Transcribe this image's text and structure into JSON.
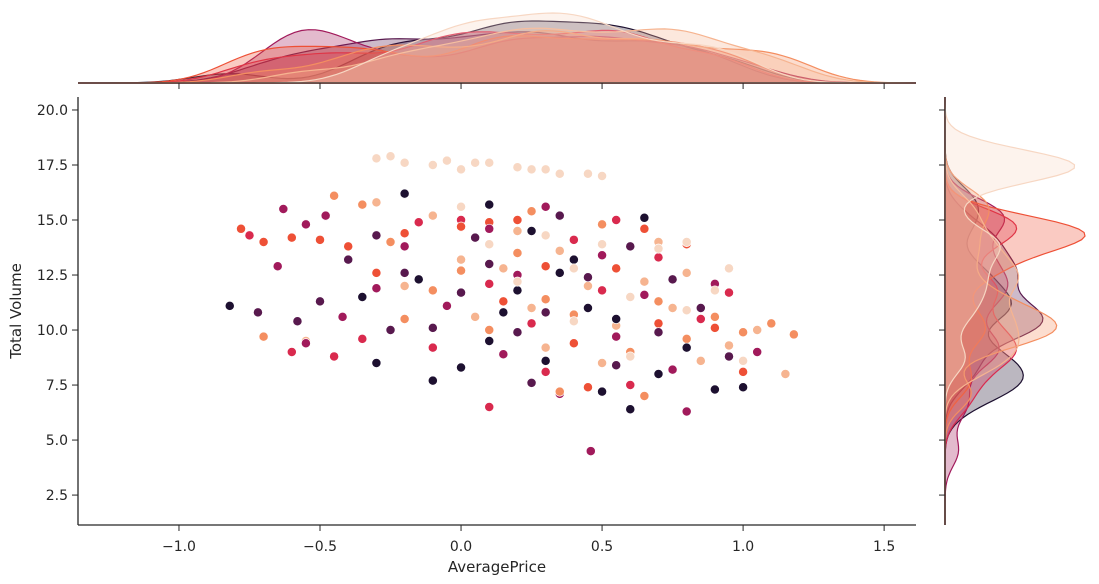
{
  "chart_data": {
    "type": "scatter",
    "kind": "jointplot",
    "xlabel": "AveragePrice",
    "ylabel": "Total Volume",
    "xlim": [
      -1.358,
      1.613
    ],
    "ylim": [
      1.14,
      20.59
    ],
    "xticks": [
      -1.0,
      -0.5,
      0.0,
      0.5,
      1.0,
      1.5
    ],
    "xtick_labels": [
      "−1.0",
      "−0.5",
      "0.0",
      "0.5",
      "1.0",
      "1.5"
    ],
    "yticks": [
      2.5,
      5.0,
      7.5,
      10.0,
      12.5,
      15.0,
      17.5,
      20.0
    ],
    "ytick_labels": [
      "2.5",
      "5.0",
      "7.5",
      "10.0",
      "12.5",
      "15.0",
      "17.5",
      "20.0"
    ],
    "grid": false,
    "legend": "none",
    "series": [
      {
        "name": "g0",
        "color": "#1d1030",
        "points": [
          [
            -0.82,
            11.1
          ],
          [
            -0.35,
            11.5
          ],
          [
            -0.3,
            8.5
          ],
          [
            -0.1,
            7.7
          ],
          [
            0.0,
            8.3
          ],
          [
            0.1,
            9.5
          ],
          [
            0.2,
            11.8
          ],
          [
            0.3,
            8.6
          ],
          [
            0.4,
            13.2
          ],
          [
            0.5,
            7.2
          ],
          [
            0.6,
            6.4
          ],
          [
            0.7,
            8.0
          ],
          [
            0.9,
            7.3
          ],
          [
            1.0,
            7.4
          ],
          [
            -0.2,
            16.2
          ],
          [
            0.1,
            15.7
          ],
          [
            0.35,
            12.6
          ],
          [
            0.55,
            10.5
          ],
          [
            0.8,
            9.2
          ],
          [
            0.25,
            14.5
          ],
          [
            -0.15,
            12.3
          ],
          [
            0.45,
            11.0
          ],
          [
            0.65,
            15.1
          ],
          [
            0.15,
            10.8
          ]
        ]
      },
      {
        "name": "g1",
        "color": "#58194e",
        "points": [
          [
            -0.72,
            10.8
          ],
          [
            -0.58,
            10.4
          ],
          [
            -0.5,
            11.3
          ],
          [
            -0.4,
            13.2
          ],
          [
            -0.3,
            14.3
          ],
          [
            -0.2,
            12.6
          ],
          [
            -0.1,
            10.1
          ],
          [
            0.0,
            11.7
          ],
          [
            0.1,
            13.0
          ],
          [
            0.2,
            9.9
          ],
          [
            0.3,
            10.8
          ],
          [
            0.45,
            12.4
          ],
          [
            0.55,
            8.4
          ],
          [
            0.7,
            9.9
          ],
          [
            0.85,
            11.0
          ],
          [
            0.95,
            8.8
          ],
          [
            0.35,
            15.2
          ],
          [
            0.05,
            14.2
          ],
          [
            -0.25,
            10.0
          ],
          [
            0.6,
            13.8
          ],
          [
            0.25,
            7.6
          ],
          [
            0.75,
            12.3
          ]
        ]
      },
      {
        "name": "g2",
        "color": "#a11a5b",
        "points": [
          [
            -0.63,
            15.5
          ],
          [
            -0.55,
            14.8
          ],
          [
            -0.48,
            15.2
          ],
          [
            -0.65,
            12.9
          ],
          [
            -0.55,
            9.4
          ],
          [
            -0.42,
            10.6
          ],
          [
            -0.2,
            13.8
          ],
          [
            -0.05,
            11.1
          ],
          [
            0.1,
            14.6
          ],
          [
            0.2,
            12.5
          ],
          [
            0.35,
            7.1
          ],
          [
            0.46,
            4.5
          ],
          [
            0.55,
            9.7
          ],
          [
            0.65,
            11.6
          ],
          [
            0.8,
            6.3
          ],
          [
            0.9,
            12.1
          ],
          [
            1.05,
            9.0
          ],
          [
            0.3,
            15.6
          ],
          [
            0.15,
            8.9
          ],
          [
            0.5,
            13.4
          ],
          [
            0.75,
            8.2
          ],
          [
            -0.3,
            11.9
          ]
        ]
      },
      {
        "name": "g3",
        "color": "#d92a4e",
        "points": [
          [
            -0.75,
            14.3
          ],
          [
            -0.6,
            9.0
          ],
          [
            -0.45,
            8.8
          ],
          [
            -0.35,
            9.6
          ],
          [
            -0.15,
            14.9
          ],
          [
            0.0,
            15.0
          ],
          [
            0.1,
            12.1
          ],
          [
            0.1,
            6.5
          ],
          [
            0.25,
            10.3
          ],
          [
            0.4,
            14.1
          ],
          [
            0.5,
            11.8
          ],
          [
            0.6,
            7.5
          ],
          [
            0.7,
            13.3
          ],
          [
            0.85,
            10.5
          ],
          [
            0.95,
            11.7
          ],
          [
            0.3,
            8.1
          ],
          [
            0.55,
            15.0
          ],
          [
            -0.1,
            9.2
          ]
        ]
      },
      {
        "name": "g4",
        "color": "#ee5036",
        "points": [
          [
            -0.78,
            14.6
          ],
          [
            -0.7,
            14.0
          ],
          [
            -0.6,
            14.2
          ],
          [
            -0.5,
            14.1
          ],
          [
            -0.4,
            13.8
          ],
          [
            -0.2,
            14.4
          ],
          [
            0.0,
            14.7
          ],
          [
            0.1,
            14.9
          ],
          [
            0.2,
            15.0
          ],
          [
            0.3,
            12.9
          ],
          [
            0.4,
            9.4
          ],
          [
            0.55,
            12.8
          ],
          [
            0.7,
            10.3
          ],
          [
            0.8,
            13.9
          ],
          [
            0.9,
            10.1
          ],
          [
            1.0,
            8.1
          ],
          [
            0.15,
            11.3
          ],
          [
            0.45,
            7.4
          ],
          [
            -0.3,
            12.6
          ],
          [
            0.65,
            14.6
          ]
        ]
      },
      {
        "name": "g5",
        "color": "#f48e60",
        "points": [
          [
            -0.7,
            9.7
          ],
          [
            -0.45,
            16.1
          ],
          [
            -0.35,
            15.7
          ],
          [
            -0.25,
            14.0
          ],
          [
            -0.1,
            11.8
          ],
          [
            0.0,
            12.7
          ],
          [
            0.1,
            10.0
          ],
          [
            0.2,
            13.5
          ],
          [
            0.3,
            11.4
          ],
          [
            0.4,
            10.7
          ],
          [
            0.5,
            14.8
          ],
          [
            0.6,
            9.0
          ],
          [
            0.7,
            11.3
          ],
          [
            0.8,
            9.6
          ],
          [
            0.9,
            10.6
          ],
          [
            1.0,
            9.9
          ],
          [
            1.1,
            10.3
          ],
          [
            1.18,
            9.8
          ],
          [
            0.35,
            7.2
          ],
          [
            0.65,
            7.0
          ],
          [
            0.25,
            15.4
          ],
          [
            -0.2,
            10.5
          ]
        ]
      },
      {
        "name": "g6",
        "color": "#f6b490",
        "points": [
          [
            -0.55,
            9.5
          ],
          [
            -0.3,
            15.8
          ],
          [
            -0.2,
            12.0
          ],
          [
            -0.1,
            15.2
          ],
          [
            0.0,
            13.2
          ],
          [
            0.05,
            10.6
          ],
          [
            0.15,
            12.8
          ],
          [
            0.25,
            11.0
          ],
          [
            0.35,
            13.6
          ],
          [
            0.45,
            12.0
          ],
          [
            0.55,
            10.2
          ],
          [
            0.65,
            12.2
          ],
          [
            0.75,
            11.0
          ],
          [
            0.85,
            8.6
          ],
          [
            0.95,
            9.3
          ],
          [
            1.05,
            10.0
          ],
          [
            1.15,
            8.0
          ],
          [
            0.5,
            8.5
          ],
          [
            0.3,
            9.2
          ],
          [
            0.7,
            14.0
          ],
          [
            0.2,
            14.5
          ],
          [
            0.8,
            12.6
          ]
        ]
      },
      {
        "name": "g7",
        "color": "#f7d7c3",
        "points": [
          [
            -0.3,
            17.8
          ],
          [
            -0.25,
            17.9
          ],
          [
            -0.2,
            17.6
          ],
          [
            -0.1,
            17.5
          ],
          [
            -0.05,
            17.7
          ],
          [
            0.0,
            17.3
          ],
          [
            0.05,
            17.6
          ],
          [
            0.1,
            17.6
          ],
          [
            0.2,
            17.4
          ],
          [
            0.25,
            17.3
          ],
          [
            0.3,
            17.3
          ],
          [
            0.35,
            17.1
          ],
          [
            0.45,
            17.1
          ],
          [
            0.5,
            17.0
          ],
          [
            0.0,
            15.6
          ],
          [
            0.1,
            13.9
          ],
          [
            0.2,
            12.2
          ],
          [
            0.3,
            14.3
          ],
          [
            0.4,
            12.8
          ],
          [
            0.5,
            13.9
          ],
          [
            0.6,
            11.5
          ],
          [
            0.7,
            13.7
          ],
          [
            0.8,
            10.9
          ],
          [
            0.9,
            11.8
          ],
          [
            1.0,
            8.6
          ],
          [
            0.6,
            8.8
          ],
          [
            0.4,
            10.4
          ],
          [
            0.8,
            14.0
          ],
          [
            0.95,
            12.8
          ]
        ]
      }
    ]
  }
}
